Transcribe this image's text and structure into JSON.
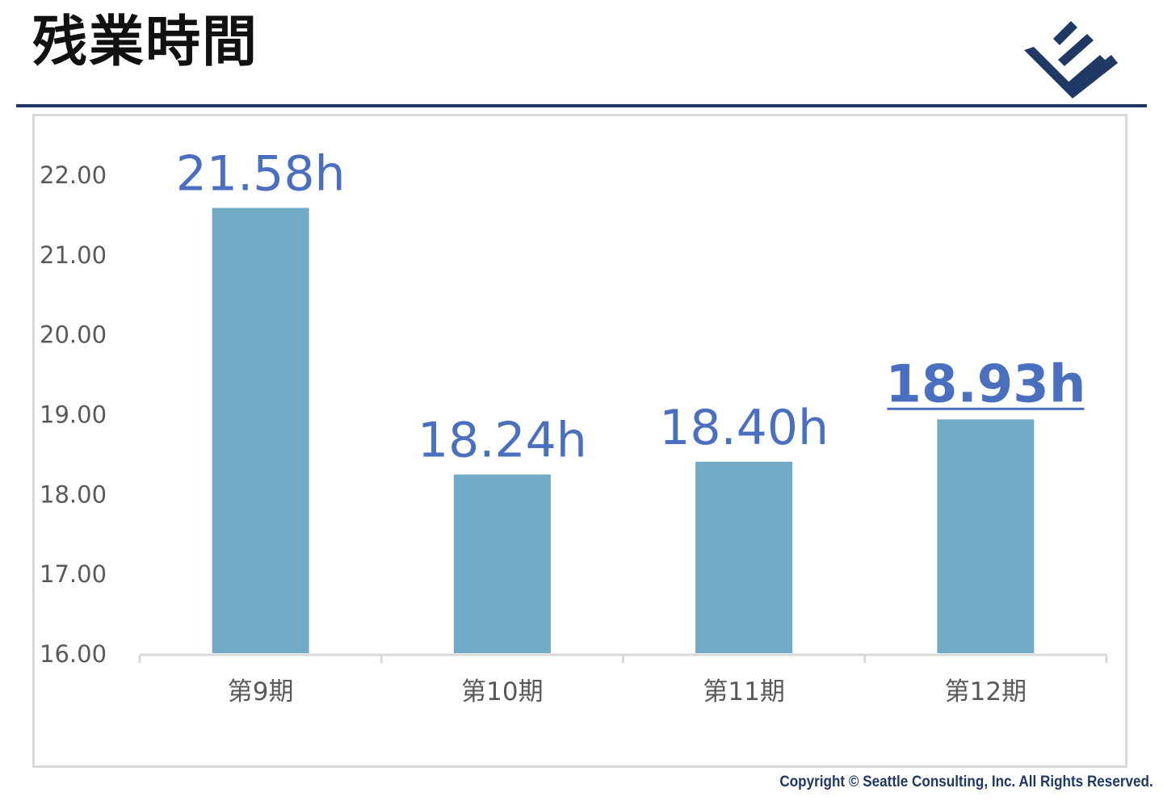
{
  "header": {
    "title": "残業時間",
    "logo_icon": "company-logo-icon",
    "colors": {
      "title": "#111111",
      "rule": "#1f3864",
      "logo": "#1f3864"
    }
  },
  "chart_data": {
    "type": "bar",
    "title": "",
    "xlabel": "",
    "ylabel": "",
    "categories": [
      "第9期",
      "第10期",
      "第11期",
      "第12期"
    ],
    "values": [
      21.58,
      18.24,
      18.4,
      18.93
    ],
    "data_labels": [
      "21.58h",
      "18.24h",
      "18.40h",
      "18.93h"
    ],
    "highlight_index": 3,
    "ylim": [
      16,
      22
    ],
    "yticks": [
      "16.00",
      "17.00",
      "18.00",
      "19.00",
      "20.00",
      "21.00",
      "22.00"
    ],
    "grid": false,
    "legend": "none",
    "colors": {
      "bar": "#71abc7",
      "data_label": "#4a6fbf",
      "tick_label": "#595959",
      "axis": "#d9d9d9"
    }
  },
  "footer": {
    "copyright": "Copyright © Seattle Consulting, Inc. All Rights Reserved."
  }
}
